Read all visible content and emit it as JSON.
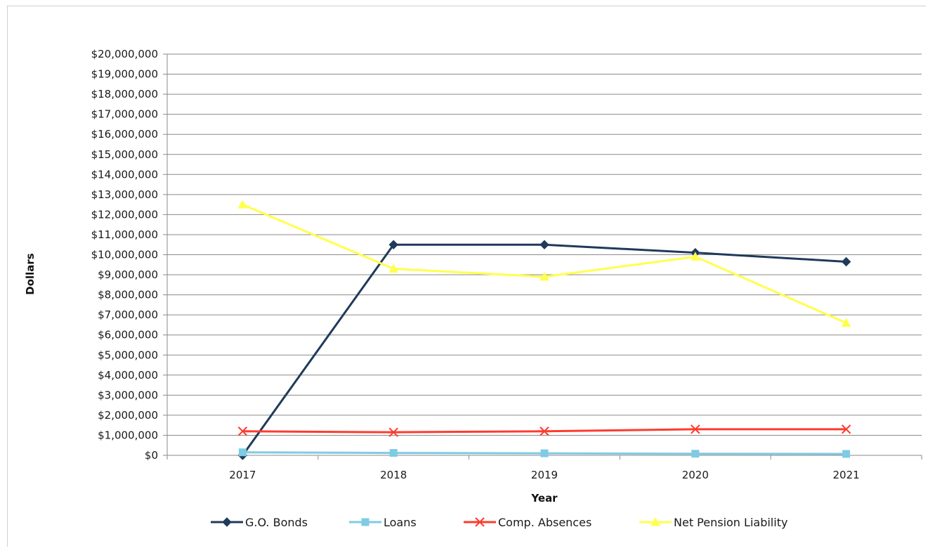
{
  "chart_data": {
    "type": "line",
    "title": "",
    "xlabel": "Year",
    "ylabel": "Dollars",
    "categories": [
      "2017",
      "2018",
      "2019",
      "2020",
      "2021"
    ],
    "ylim": [
      0,
      20000000
    ],
    "ytick_step": 1000000,
    "grid": true,
    "legend_position": "bottom",
    "series": [
      {
        "name": "G.O. Bonds",
        "color": "#1f3a5a",
        "marker": "diamond",
        "values": [
          0,
          10500000,
          10500000,
          10100000,
          9650000
        ]
      },
      {
        "name": "Loans",
        "color": "#7ecbe3",
        "marker": "square",
        "values": [
          150000,
          120000,
          100000,
          80000,
          70000
        ]
      },
      {
        "name": "Comp. Absences",
        "color": "#ff3b2f",
        "marker": "x",
        "values": [
          1200000,
          1150000,
          1200000,
          1300000,
          1300000
        ]
      },
      {
        "name": "Net Pension Liability",
        "color": "#ffff4d",
        "marker": "triangle",
        "values": [
          12500000,
          9300000,
          8900000,
          9900000,
          6600000
        ]
      }
    ]
  }
}
